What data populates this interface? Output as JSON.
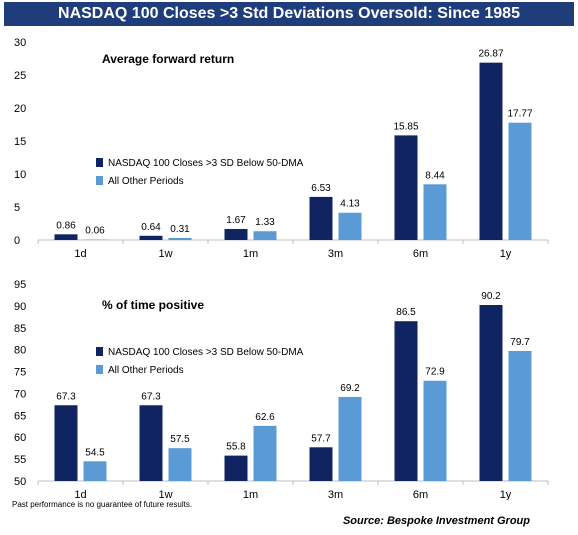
{
  "title": "NASDAQ 100 Closes >3 Std Deviations Oversold: Since 1985",
  "footnote": "Past performance is no guarantee of future results.",
  "source": "Source: Bespoke Investment Group",
  "colors": {
    "title_bg": "#1f3d7a",
    "series_dark": "#0f2460",
    "series_light": "#5b9bd5"
  },
  "chart_data": [
    {
      "type": "bar",
      "title": "Average forward return",
      "categories": [
        "1d",
        "1w",
        "1m",
        "3m",
        "6m",
        "1y"
      ],
      "series": [
        {
          "name": "NASDAQ 100 Closes >3 SD Below 50-DMA",
          "values": [
            0.86,
            0.64,
            1.67,
            6.53,
            15.85,
            26.87
          ]
        },
        {
          "name": "All Other Periods",
          "values": [
            0.06,
            0.31,
            1.33,
            4.13,
            8.44,
            17.77
          ]
        }
      ],
      "ylim": [
        0,
        30
      ],
      "yticks": [
        0,
        5,
        10,
        15,
        20,
        25,
        30
      ],
      "legend": "middle-left",
      "grid": false
    },
    {
      "type": "bar",
      "title": "% of time positive",
      "categories": [
        "1d",
        "1w",
        "1m",
        "3m",
        "6m",
        "1y"
      ],
      "series": [
        {
          "name": "NASDAQ 100 Closes >3 SD Below 50-DMA",
          "values": [
            67.3,
            67.3,
            55.8,
            57.7,
            86.5,
            90.2
          ]
        },
        {
          "name": "All Other Periods",
          "values": [
            54.5,
            57.5,
            62.6,
            69.2,
            72.9,
            79.7
          ]
        }
      ],
      "ylim": [
        50,
        95
      ],
      "yticks": [
        50,
        55,
        60,
        65,
        70,
        75,
        80,
        85,
        90,
        95
      ],
      "legend": "middle-left",
      "grid": false
    }
  ]
}
